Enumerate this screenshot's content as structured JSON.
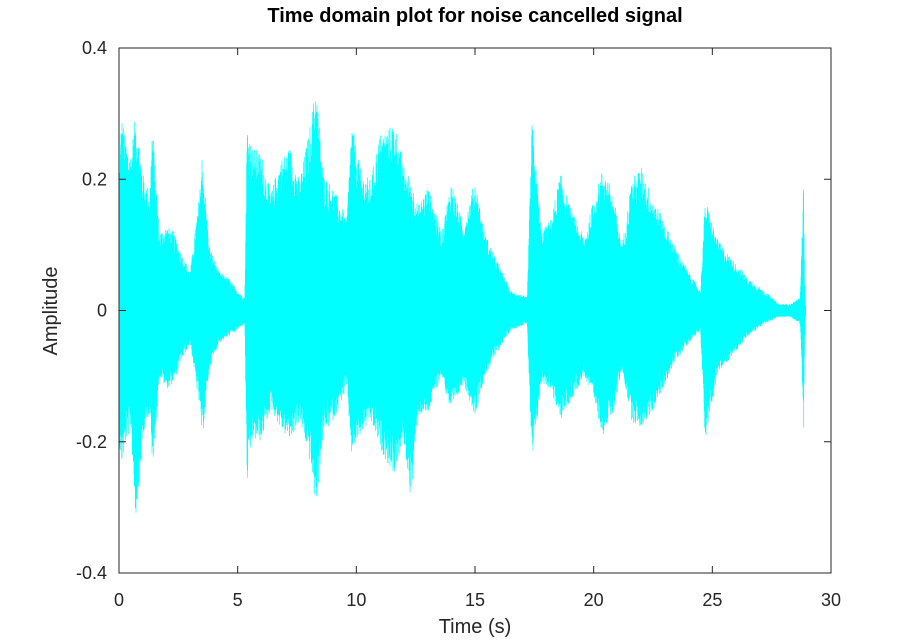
{
  "chart_data": {
    "type": "line",
    "title": "Time domain plot for noise cancelled signal",
    "xlabel": "Time (s)",
    "ylabel": "Amplitude",
    "xlim": [
      0,
      30
    ],
    "ylim": [
      -0.4,
      0.4
    ],
    "x_ticks": [
      0,
      5,
      10,
      15,
      20,
      25,
      30
    ],
    "y_ticks": [
      -0.4,
      -0.2,
      0,
      0.2,
      0.4
    ],
    "x_tick_labels": [
      "0",
      "5",
      "10",
      "15",
      "20",
      "25",
      "30"
    ],
    "y_tick_labels": [
      "-0.4",
      "-0.2",
      "0",
      "0.2",
      "0.4"
    ],
    "grid": false,
    "legend": "none",
    "series_color": "#00ffff",
    "signal_duration": 28.9,
    "envelope": {
      "x": [
        0,
        0.1,
        0.3,
        0.5,
        0.7,
        1.0,
        1.3,
        1.4,
        1.7,
        2.0,
        2.3,
        2.6,
        3.0,
        3.4,
        3.5,
        3.8,
        4.2,
        4.6,
        5.0,
        5.3,
        5.4,
        5.6,
        6.0,
        6.4,
        6.8,
        7.2,
        7.6,
        8.0,
        8.3,
        8.6,
        9.0,
        9.6,
        9.8,
        10.2,
        10.6,
        11.0,
        11.4,
        11.6,
        12.0,
        12.3,
        12.6,
        13.0,
        13.6,
        14.0,
        14.5,
        15.0,
        15.4,
        16.0,
        16.5,
        17.2,
        17.4,
        17.8,
        18.2,
        18.6,
        19.0,
        19.6,
        20.0,
        20.4,
        20.8,
        21.2,
        21.6,
        22.0,
        22.4,
        22.8,
        23.4,
        24.0,
        24.5,
        24.7,
        25.2,
        25.8,
        26.5,
        27.2,
        27.8,
        28.3,
        28.7,
        28.85,
        28.9
      ],
      "upper": [
        0.2,
        0.3,
        0.26,
        0.24,
        0.3,
        0.21,
        0.18,
        0.29,
        0.12,
        0.13,
        0.12,
        0.09,
        0.06,
        0.18,
        0.24,
        0.1,
        0.06,
        0.05,
        0.03,
        0.02,
        0.29,
        0.25,
        0.24,
        0.18,
        0.23,
        0.25,
        0.2,
        0.27,
        0.35,
        0.21,
        0.19,
        0.14,
        0.29,
        0.21,
        0.2,
        0.27,
        0.28,
        0.29,
        0.22,
        0.2,
        0.16,
        0.19,
        0.12,
        0.2,
        0.13,
        0.2,
        0.12,
        0.07,
        0.03,
        0.02,
        0.29,
        0.12,
        0.14,
        0.21,
        0.16,
        0.11,
        0.17,
        0.22,
        0.18,
        0.1,
        0.2,
        0.22,
        0.18,
        0.15,
        0.1,
        0.06,
        0.03,
        0.17,
        0.11,
        0.08,
        0.05,
        0.03,
        0.01,
        0.01,
        0.02,
        0.2,
        0.01
      ],
      "lower": [
        -0.2,
        -0.24,
        -0.2,
        -0.18,
        -0.32,
        -0.2,
        -0.15,
        -0.25,
        -0.1,
        -0.12,
        -0.11,
        -0.08,
        -0.05,
        -0.15,
        -0.2,
        -0.09,
        -0.05,
        -0.04,
        -0.03,
        -0.02,
        -0.27,
        -0.2,
        -0.2,
        -0.15,
        -0.18,
        -0.2,
        -0.17,
        -0.22,
        -0.3,
        -0.19,
        -0.17,
        -0.12,
        -0.22,
        -0.19,
        -0.17,
        -0.21,
        -0.24,
        -0.25,
        -0.2,
        -0.29,
        -0.16,
        -0.16,
        -0.1,
        -0.16,
        -0.11,
        -0.16,
        -0.1,
        -0.06,
        -0.03,
        -0.02,
        -0.24,
        -0.11,
        -0.12,
        -0.17,
        -0.14,
        -0.1,
        -0.14,
        -0.19,
        -0.16,
        -0.09,
        -0.17,
        -0.18,
        -0.16,
        -0.13,
        -0.08,
        -0.05,
        -0.03,
        -0.2,
        -0.1,
        -0.07,
        -0.04,
        -0.02,
        -0.01,
        -0.01,
        -0.02,
        -0.18,
        -0.01
      ]
    }
  }
}
